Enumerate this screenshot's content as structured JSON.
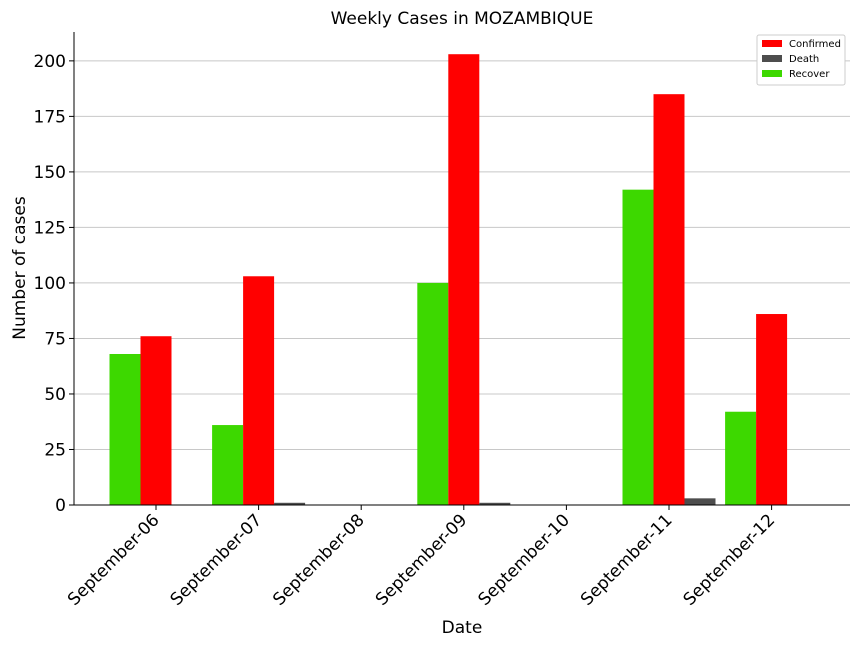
{
  "chart_data": {
    "type": "bar",
    "title": "Weekly Cases in MOZAMBIQUE",
    "xlabel": "Date",
    "ylabel": "Number of cases",
    "categories": [
      "September-06",
      "September-07",
      "September-08",
      "September-09",
      "September-10",
      "September-11",
      "September-12"
    ],
    "series": [
      {
        "name": "Recover",
        "color": "#3dd800",
        "values": [
          68,
          36,
          0,
          100,
          0,
          142,
          42
        ]
      },
      {
        "name": "Confirmed",
        "color": "#ff0000",
        "values": [
          76,
          103,
          0,
          203,
          0,
          185,
          86
        ]
      },
      {
        "name": "Death",
        "color": "#4d4d4d",
        "values": [
          0,
          1,
          0,
          1,
          0,
          3,
          0
        ]
      }
    ],
    "legend_order": [
      "Confirmed",
      "Death",
      "Recover"
    ],
    "legend_position": "top-right",
    "ylim": [
      0,
      213
    ],
    "yticks": [
      0,
      25,
      50,
      75,
      100,
      125,
      150,
      175,
      200
    ],
    "grid": "horizontal"
  }
}
